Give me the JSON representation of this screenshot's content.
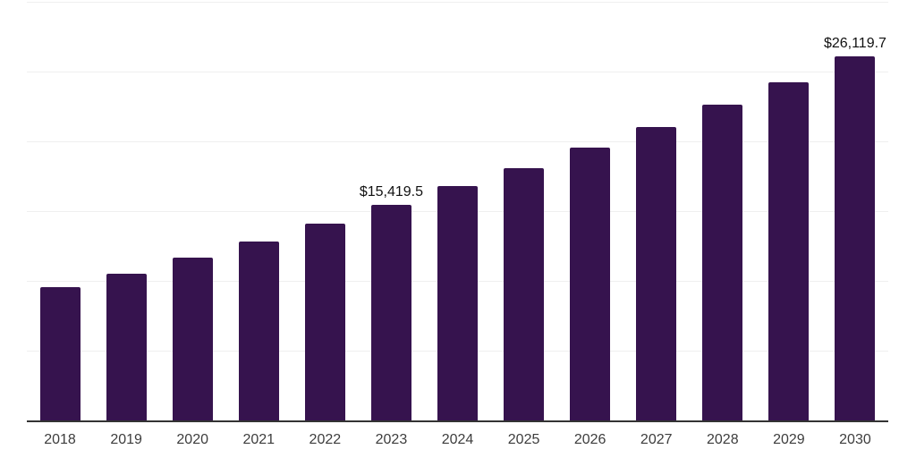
{
  "chart_data": {
    "type": "bar",
    "title": "",
    "xlabel": "",
    "ylabel": "",
    "categories": [
      "2018",
      "2019",
      "2020",
      "2021",
      "2022",
      "2023",
      "2024",
      "2025",
      "2026",
      "2027",
      "2028",
      "2029",
      "2030"
    ],
    "values": [
      9550,
      10510,
      11670,
      12820,
      14100,
      15419.5,
      16800,
      18080,
      19550,
      21030,
      22630,
      24230,
      26119.7
    ],
    "data_labels": [
      {
        "category": "2023",
        "text": "$15,419.5"
      },
      {
        "category": "2030",
        "text": "$26,119.7"
      }
    ],
    "ylim": [
      0,
      30000
    ],
    "gridline_interval": 5000,
    "grid": true,
    "legend": "none",
    "colors": {
      "bar": "#36134E",
      "axis_line": "#333333",
      "gridline": "#efefef",
      "tick_label": "#3d3d3d",
      "data_label": "#111111",
      "background": "#ffffff"
    }
  }
}
